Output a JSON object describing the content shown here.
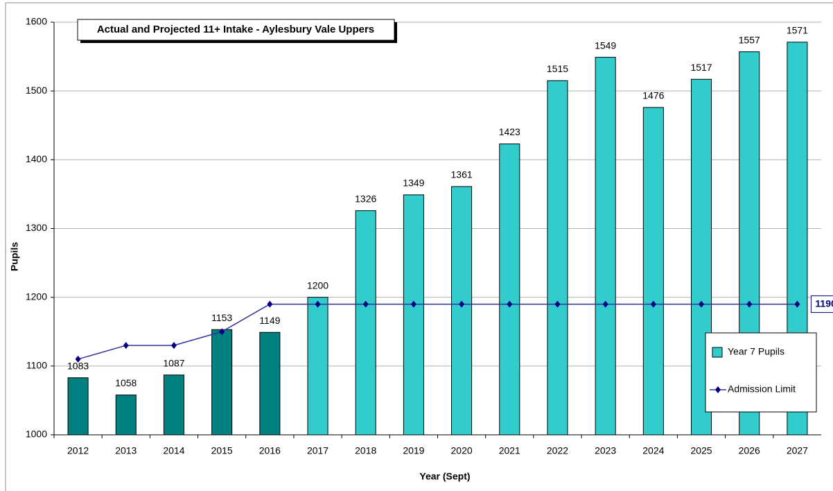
{
  "chart_data": {
    "type": "bar",
    "title": "Actual and Projected 11+ Intake - Aylesbury Vale Uppers",
    "x_label": "Year (Sept)",
    "y_label": "Pupils",
    "categories": [
      "2012",
      "2013",
      "2014",
      "2015",
      "2016",
      "2017",
      "2018",
      "2019",
      "2020",
      "2021",
      "2022",
      "2023",
      "2024",
      "2025",
      "2026",
      "2027"
    ],
    "series": [
      {
        "name": "Year 7 Pupils",
        "type": "bar",
        "color": "#33cccc",
        "colors": [
          "#008080",
          "#008080",
          "#008080",
          "#008080",
          "#008080",
          "#33cccc",
          "#33cccc",
          "#33cccc",
          "#33cccc",
          "#33cccc",
          "#33cccc",
          "#33cccc",
          "#33cccc",
          "#33cccc",
          "#33cccc",
          "#33cccc"
        ],
        "values": [
          1083,
          1058,
          1087,
          1153,
          1149,
          1200,
          1326,
          1349,
          1361,
          1423,
          1515,
          1549,
          1476,
          1517,
          1557,
          1571
        ]
      },
      {
        "name": "Admission Limit",
        "type": "line",
        "color": "#333399",
        "values": [
          1110,
          1130,
          1130,
          1150,
          1190,
          1190,
          1190,
          1190,
          1190,
          1190,
          1190,
          1190,
          1190,
          1190,
          1190,
          1190
        ]
      }
    ],
    "ylim": [
      1000,
      1600
    ],
    "yticks": [
      1000,
      1100,
      1200,
      1300,
      1400,
      1500,
      1600
    ],
    "grid": true,
    "legend": "right"
  }
}
